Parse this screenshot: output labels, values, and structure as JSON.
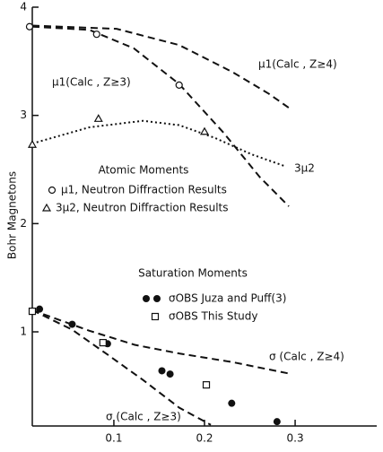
{
  "chart_data": {
    "type": "line",
    "y_label": "Bohr Magnetons",
    "xlim": [
      0.01,
      0.39
    ],
    "ylim": [
      0.13,
      4
    ],
    "xticks": [
      0.1,
      0.2,
      0.3
    ],
    "yticks": [
      1,
      2,
      3,
      4
    ],
    "annotations": [
      "Atomic Moments",
      "Saturation Moments"
    ],
    "series": [
      {
        "name": "μ1(Calc , Z≥3)",
        "style": "dashed",
        "color": "#111111",
        "x": [
          0.01,
          0.073,
          0.122,
          0.172,
          0.221,
          0.261,
          0.293
        ],
        "values": [
          3.82,
          3.79,
          3.62,
          3.29,
          2.84,
          2.43,
          2.16
        ]
      },
      {
        "name": "μ1(Calc , Z≥4)",
        "style": "dashed",
        "color": "#111111",
        "x": [
          0.01,
          0.103,
          0.172,
          0.231,
          0.271,
          0.293
        ],
        "values": [
          3.83,
          3.8,
          3.65,
          3.4,
          3.2,
          3.07
        ]
      },
      {
        "name": "3μ2",
        "style": "dotted",
        "color": "#111111",
        "x": [
          0.01,
          0.073,
          0.132,
          0.172,
          0.212,
          0.252,
          0.289
        ],
        "values": [
          2.74,
          2.89,
          2.95,
          2.91,
          2.79,
          2.64,
          2.53
        ]
      },
      {
        "name": "σ (Calc , Z≥4)",
        "style": "dashed",
        "color": "#111111",
        "x": [
          0.01,
          0.073,
          0.123,
          0.172,
          0.231,
          0.296
        ],
        "values": [
          1.2,
          1.01,
          0.88,
          0.8,
          0.72,
          0.61
        ]
      },
      {
        "name": "σ (Calc , Z≥3)",
        "style": "dashed",
        "color": "#111111",
        "x": [
          0.01,
          0.054,
          0.093,
          0.133,
          0.172,
          0.207
        ],
        "values": [
          1.2,
          1.02,
          0.79,
          0.55,
          0.3,
          0.14
        ]
      },
      {
        "name": "μ1, Neutron Diffraction Results",
        "style": "circle-open",
        "color": "#111111",
        "x": [
          0.007,
          0.081,
          0.172
        ],
        "values": [
          3.82,
          3.75,
          3.28
        ]
      },
      {
        "name": "3μ2, Neutron Diffraction Results",
        "style": "triangle-open",
        "color": "#111111",
        "x": [
          0.01,
          0.083,
          0.2
        ],
        "values": [
          2.73,
          2.97,
          2.85
        ]
      },
      {
        "name": "σOBS Juza and Puff(3)",
        "style": "circle-filled",
        "color": "#111111",
        "x": [
          0.018,
          0.054,
          0.093,
          0.153,
          0.162,
          0.23,
          0.28
        ],
        "values": [
          1.21,
          1.07,
          0.89,
          0.64,
          0.61,
          0.34,
          0.17
        ]
      },
      {
        "name": "σOBS This Study",
        "style": "square-open",
        "color": "#111111",
        "x": [
          0.01,
          0.088,
          0.202
        ],
        "values": [
          1.19,
          0.9,
          0.51
        ]
      }
    ]
  }
}
